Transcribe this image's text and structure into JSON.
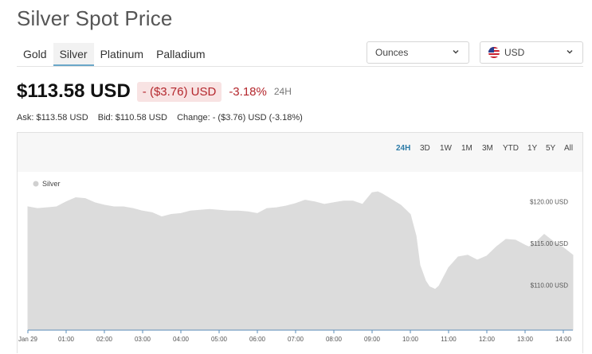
{
  "page": {
    "title": "Silver Spot Price"
  },
  "metal_tabs": [
    {
      "label": "Gold",
      "active": false
    },
    {
      "label": "Silver",
      "active": true
    },
    {
      "label": "Platinum",
      "active": false
    },
    {
      "label": "Palladium",
      "active": false
    }
  ],
  "unit_select": {
    "value": "Ounces",
    "icon": "chevron-down-icon"
  },
  "currency_select": {
    "value": "USD",
    "icon": "us-flag-icon"
  },
  "price": {
    "value": "$113.58 USD",
    "change": "- ($3.76) USD",
    "change_pct": "-3.18%",
    "period": "24H",
    "change_color": "#b4272d"
  },
  "quote": {
    "ask": "Ask: $113.58 USD",
    "bid": "Bid: $110.58 USD",
    "change": "Change: - ($3.76) USD (-3.18%)"
  },
  "ranges": [
    "24H",
    "3D",
    "1W",
    "1M",
    "3M",
    "YTD",
    "1Y",
    "5Y",
    "All"
  ],
  "active_range": "24H",
  "chart_data": {
    "type": "area",
    "series": [
      {
        "name": "Silver",
        "x": [
          0,
          0.25,
          0.5,
          0.75,
          1,
          1.25,
          1.5,
          1.75,
          2,
          2.25,
          2.5,
          2.75,
          3,
          3.25,
          3.5,
          3.75,
          4,
          4.25,
          4.5,
          4.75,
          5,
          5.25,
          5.5,
          5.75,
          6,
          6.25,
          6.5,
          6.75,
          7,
          7.25,
          7.5,
          7.75,
          8,
          8.25,
          8.5,
          8.75,
          9,
          9.15,
          9.25,
          9.5,
          9.75,
          10,
          10.15,
          10.25,
          10.4,
          10.5,
          10.65,
          10.75,
          11,
          11.25,
          11.5,
          11.75,
          12,
          12.25,
          12.5,
          12.75,
          13,
          13.1,
          13.25,
          13.5,
          13.75,
          14,
          14.25
        ],
        "values": [
          119.4,
          119.2,
          119.3,
          119.4,
          120.0,
          120.5,
          120.4,
          119.9,
          119.6,
          119.4,
          119.4,
          119.2,
          118.9,
          118.7,
          118.2,
          118.5,
          118.6,
          118.9,
          119.0,
          119.1,
          119.0,
          118.9,
          118.9,
          118.8,
          118.6,
          119.2,
          119.3,
          119.5,
          119.8,
          120.2,
          120.0,
          119.7,
          119.9,
          120.1,
          120.1,
          119.7,
          121.1,
          121.2,
          121.0,
          120.3,
          119.6,
          118.5,
          115.9,
          112.4,
          110.5,
          109.8,
          109.5,
          109.9,
          112.1,
          113.4,
          113.6,
          113.0,
          113.5,
          114.6,
          115.5,
          115.4,
          114.8,
          114.6,
          115.0,
          116.1,
          115.2,
          114.5,
          113.6
        ]
      }
    ],
    "x_ticks": [
      "Jan 29",
      "01:00",
      "02:00",
      "03:00",
      "04:00",
      "05:00",
      "06:00",
      "07:00",
      "08:00",
      "09:00",
      "10:00",
      "11:00",
      "12:00",
      "13:00",
      "14:00"
    ],
    "y_ticks": [
      "$120.00 USD",
      "$115.00 USD",
      "$110.00 USD"
    ],
    "y_tick_values": [
      120,
      115,
      110
    ],
    "ylim": [
      104.6,
      123.7
    ],
    "legend": "top-left",
    "grid": false,
    "fill_color": "#dcdcdc",
    "line_color": "#dcdcdc",
    "axis_color": "#5b8db8",
    "legend_marker_color": "#d0d0d0"
  }
}
